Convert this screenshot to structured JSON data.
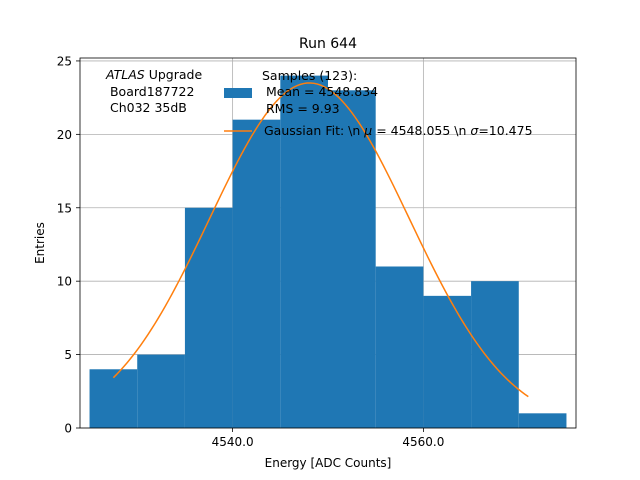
{
  "chart_data": {
    "type": "bar",
    "title": "Run 644",
    "xlabel": "Energy [ADC Counts]",
    "ylabel": "Entries",
    "xlim": [
      4524.0,
      4576.0
    ],
    "ylim": [
      0,
      25.2
    ],
    "grid": true,
    "xticks": [
      4540.0,
      4560.0
    ],
    "xtick_labels": [
      "4540.0",
      "4560.0"
    ],
    "yticks": [
      0,
      5,
      10,
      15,
      20,
      25
    ],
    "ytick_labels": [
      "0",
      "5",
      "10",
      "15",
      "20",
      "25"
    ],
    "histogram": {
      "name": "Samples",
      "bin_edges": [
        4525,
        4530,
        4535,
        4540,
        4545,
        4550,
        4555,
        4560,
        4565,
        4570,
        4575
      ],
      "counts": [
        4,
        5,
        15,
        21,
        24,
        23,
        11,
        9,
        10,
        1
      ],
      "color": "#1f77b4"
    },
    "fit": {
      "name": "Gaussian Fit",
      "mu": 4548.055,
      "sigma": 10.475,
      "amplitude": 23.5,
      "x_range": [
        4527.5,
        4571.0
      ],
      "color": "#ff7f0e"
    },
    "legend": {
      "position": "top-center",
      "samples_lines": [
        "Samples (123):",
        " Mean = 4548.834",
        " RMS = 9.93"
      ],
      "fit_text_prefix": "Gaussian Fit: \\n ",
      "fit_mu_label": "μ",
      "fit_mu_value": " = 4548.055 \\n ",
      "fit_sigma_label": "σ",
      "fit_sigma_value": "=10.475"
    },
    "annotation": {
      "italic": "ATLAS",
      "rest": " Upgrade",
      "line2": " Board187722",
      "line3": " Ch032 35dB"
    }
  }
}
